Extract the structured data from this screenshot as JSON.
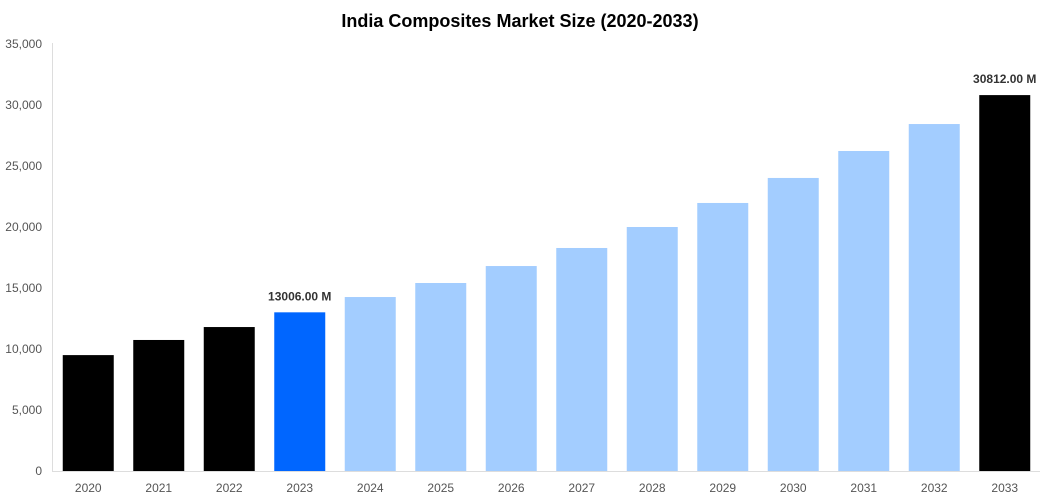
{
  "chart_data": {
    "type": "bar",
    "title": "India Composites Market Size (2020-2033)",
    "xlabel": "",
    "ylabel": "",
    "ylim": [
      0,
      35000
    ],
    "yticks": [
      "0",
      "5,000",
      "10,000",
      "15,000",
      "20,000",
      "25,000",
      "30,000",
      "35,000"
    ],
    "categories": [
      "2020",
      "2021",
      "2022",
      "2023",
      "2024",
      "2025",
      "2026",
      "2027",
      "2028",
      "2029",
      "2030",
      "2031",
      "2032",
      "2033"
    ],
    "values": [
      9500,
      10740,
      11800,
      13006,
      14260,
      15410,
      16800,
      18280,
      20000,
      21970,
      24020,
      26230,
      28440,
      30812
    ],
    "colors": [
      "#000000",
      "#000000",
      "#000000",
      "#0066ff",
      "#a3cdff",
      "#a3cdff",
      "#a3cdff",
      "#a3cdff",
      "#a3cdff",
      "#a3cdff",
      "#a3cdff",
      "#a3cdff",
      "#a3cdff",
      "#000000"
    ],
    "data_labels": [
      {
        "index": 3,
        "text": "13006.00 M"
      },
      {
        "index": 13,
        "text": "30812.00 M"
      }
    ],
    "grid": false,
    "legend": "none"
  }
}
